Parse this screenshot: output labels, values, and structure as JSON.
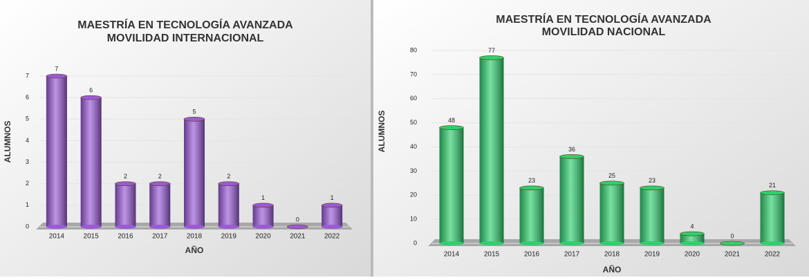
{
  "chart_data": [
    {
      "type": "bar",
      "title": "MAESTRÍA EN TECNOLOGÍA AVANZADA",
      "subtitle": "MOVILIDAD INTERNACIONAL",
      "y_label": "ALUMNOS",
      "x_label": "AÑO",
      "categories": [
        "2014",
        "2015",
        "2016",
        "2017",
        "2018",
        "2019",
        "2020",
        "2021",
        "2022"
      ],
      "values": [
        7,
        6,
        2,
        2,
        5,
        2,
        1,
        0,
        1
      ],
      "color": "#9a5ad8",
      "ylim": [
        0,
        7
      ],
      "yticks": [
        0,
        1,
        2,
        3,
        4,
        5,
        6,
        7
      ],
      "grid": true
    },
    {
      "type": "bar",
      "title": "MAESTRÍA EN TECNOLOGÍA AVANZADA",
      "subtitle": "MOVILIDAD NACIONAL",
      "y_label": "ALUMNOS",
      "x_label": "AÑO",
      "categories": [
        "2014",
        "2015",
        "2016",
        "2017",
        "2018",
        "2019",
        "2020",
        "2021",
        "2022"
      ],
      "values": [
        48,
        77,
        23,
        36,
        25,
        23,
        4,
        0,
        21
      ],
      "color": "#2ed06e",
      "ylim": [
        0,
        80
      ],
      "yticks": [
        0,
        10,
        20,
        30,
        40,
        50,
        60,
        70,
        80
      ],
      "grid": true
    }
  ]
}
